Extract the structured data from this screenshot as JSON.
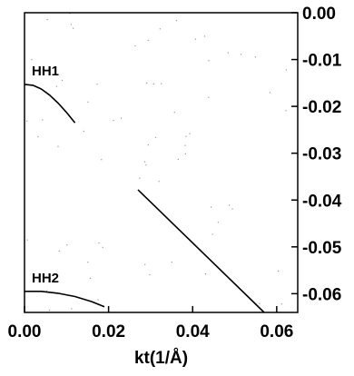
{
  "chart_data": {
    "type": "line",
    "title": "",
    "xlabel": "kt(1/Å)",
    "ylabel": "",
    "xlim": [
      0.0,
      0.065
    ],
    "ylim": [
      -0.064,
      0.0
    ],
    "x_ticks": [
      {
        "value": 0.0,
        "label": "0.00"
      },
      {
        "value": 0.02,
        "label": "0.02"
      },
      {
        "value": 0.04,
        "label": "0.04"
      },
      {
        "value": 0.06,
        "label": "0.06"
      }
    ],
    "y_ticks": [
      {
        "value": 0.0,
        "label": "0.00"
      },
      {
        "value": -0.01,
        "label": "-0.01"
      },
      {
        "value": -0.02,
        "label": "-0.02"
      },
      {
        "value": -0.03,
        "label": "-0.03"
      },
      {
        "value": -0.04,
        "label": "-0.04"
      },
      {
        "value": -0.05,
        "label": "-0.05"
      },
      {
        "value": -0.06,
        "label": "-0.06"
      }
    ],
    "y_axis_side": "right",
    "grid": false,
    "series": [
      {
        "name": "HH1",
        "x": [
          0.0,
          0.002,
          0.004,
          0.006,
          0.008,
          0.01,
          0.012
        ],
        "y": [
          -0.0153,
          -0.0155,
          -0.0163,
          -0.0176,
          -0.0193,
          -0.0213,
          -0.0235
        ]
      },
      {
        "name": "HH2",
        "x": [
          0.0,
          0.004,
          0.008,
          0.012,
          0.016,
          0.019
        ],
        "y": [
          -0.0595,
          -0.0595,
          -0.0599,
          -0.0606,
          -0.0617,
          -0.0628
        ]
      },
      {
        "name": "",
        "x": [
          0.027,
          0.057
        ],
        "y": [
          -0.0378,
          -0.064
        ]
      }
    ]
  }
}
